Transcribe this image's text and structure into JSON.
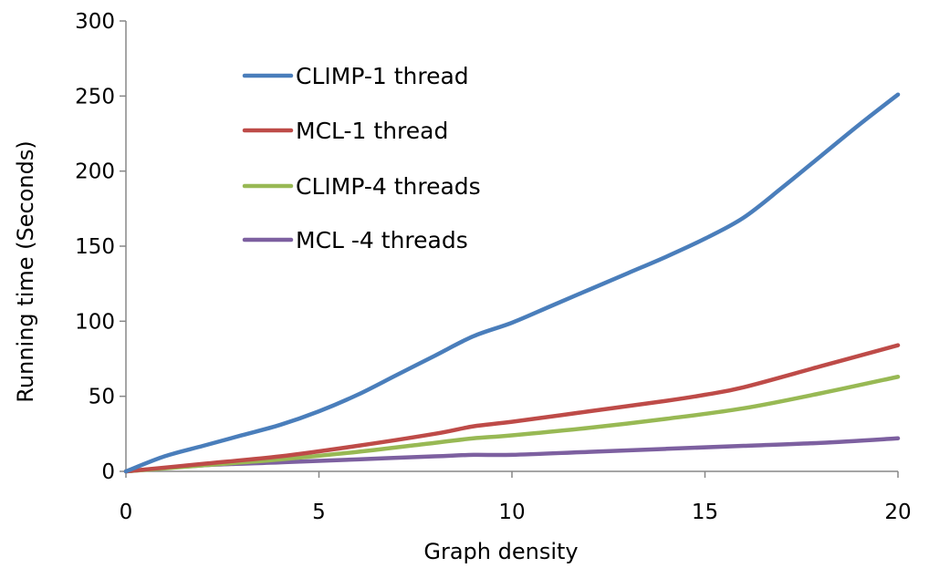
{
  "chart_data": {
    "type": "line",
    "title": "",
    "xlabel": "Graph density",
    "ylabel": "Running time  (Seconds)",
    "xlim": [
      0,
      20
    ],
    "ylim": [
      0,
      300
    ],
    "xticks": [
      0,
      5,
      10,
      15,
      20
    ],
    "yticks": [
      0,
      50,
      100,
      150,
      200,
      250,
      300
    ],
    "grid": false,
    "legend_position": "top-left",
    "series": [
      {
        "name": "CLIMP-1 thread",
        "color": "#4a7ebb",
        "x": [
          0,
          1,
          2,
          3,
          4,
          5,
          6,
          7,
          8,
          9,
          10,
          11,
          12,
          13,
          14,
          15,
          16,
          17,
          18,
          19,
          20
        ],
        "y": [
          0,
          10,
          17,
          24,
          31,
          40,
          51,
          64,
          77,
          90,
          99,
          110,
          121,
          132,
          143,
          155,
          169,
          189,
          210,
          231,
          251
        ]
      },
      {
        "name": "MCL-1 thread",
        "color": "#be4b48",
        "x": [
          0,
          2,
          4,
          6,
          8,
          9,
          10,
          12,
          14,
          15,
          16,
          18,
          20
        ],
        "y": [
          0,
          5,
          10,
          17,
          25,
          30,
          33,
          40,
          47,
          51,
          56,
          70,
          84
        ]
      },
      {
        "name": "CLIMP-4 threads",
        "color": "#98b954",
        "x": [
          0,
          2,
          4,
          6,
          8,
          9,
          10,
          12,
          14,
          16,
          18,
          20
        ],
        "y": [
          0,
          4,
          8,
          13,
          19,
          22,
          24,
          29,
          35,
          42,
          52,
          63
        ]
      },
      {
        "name": "MCL -4 threads",
        "color": "#7d60a0",
        "x": [
          0,
          2,
          4,
          6,
          8,
          9,
          10,
          12,
          14,
          16,
          18,
          20
        ],
        "y": [
          0,
          4,
          6,
          8,
          10,
          11,
          11,
          13,
          15,
          17,
          19,
          22
        ]
      }
    ]
  }
}
